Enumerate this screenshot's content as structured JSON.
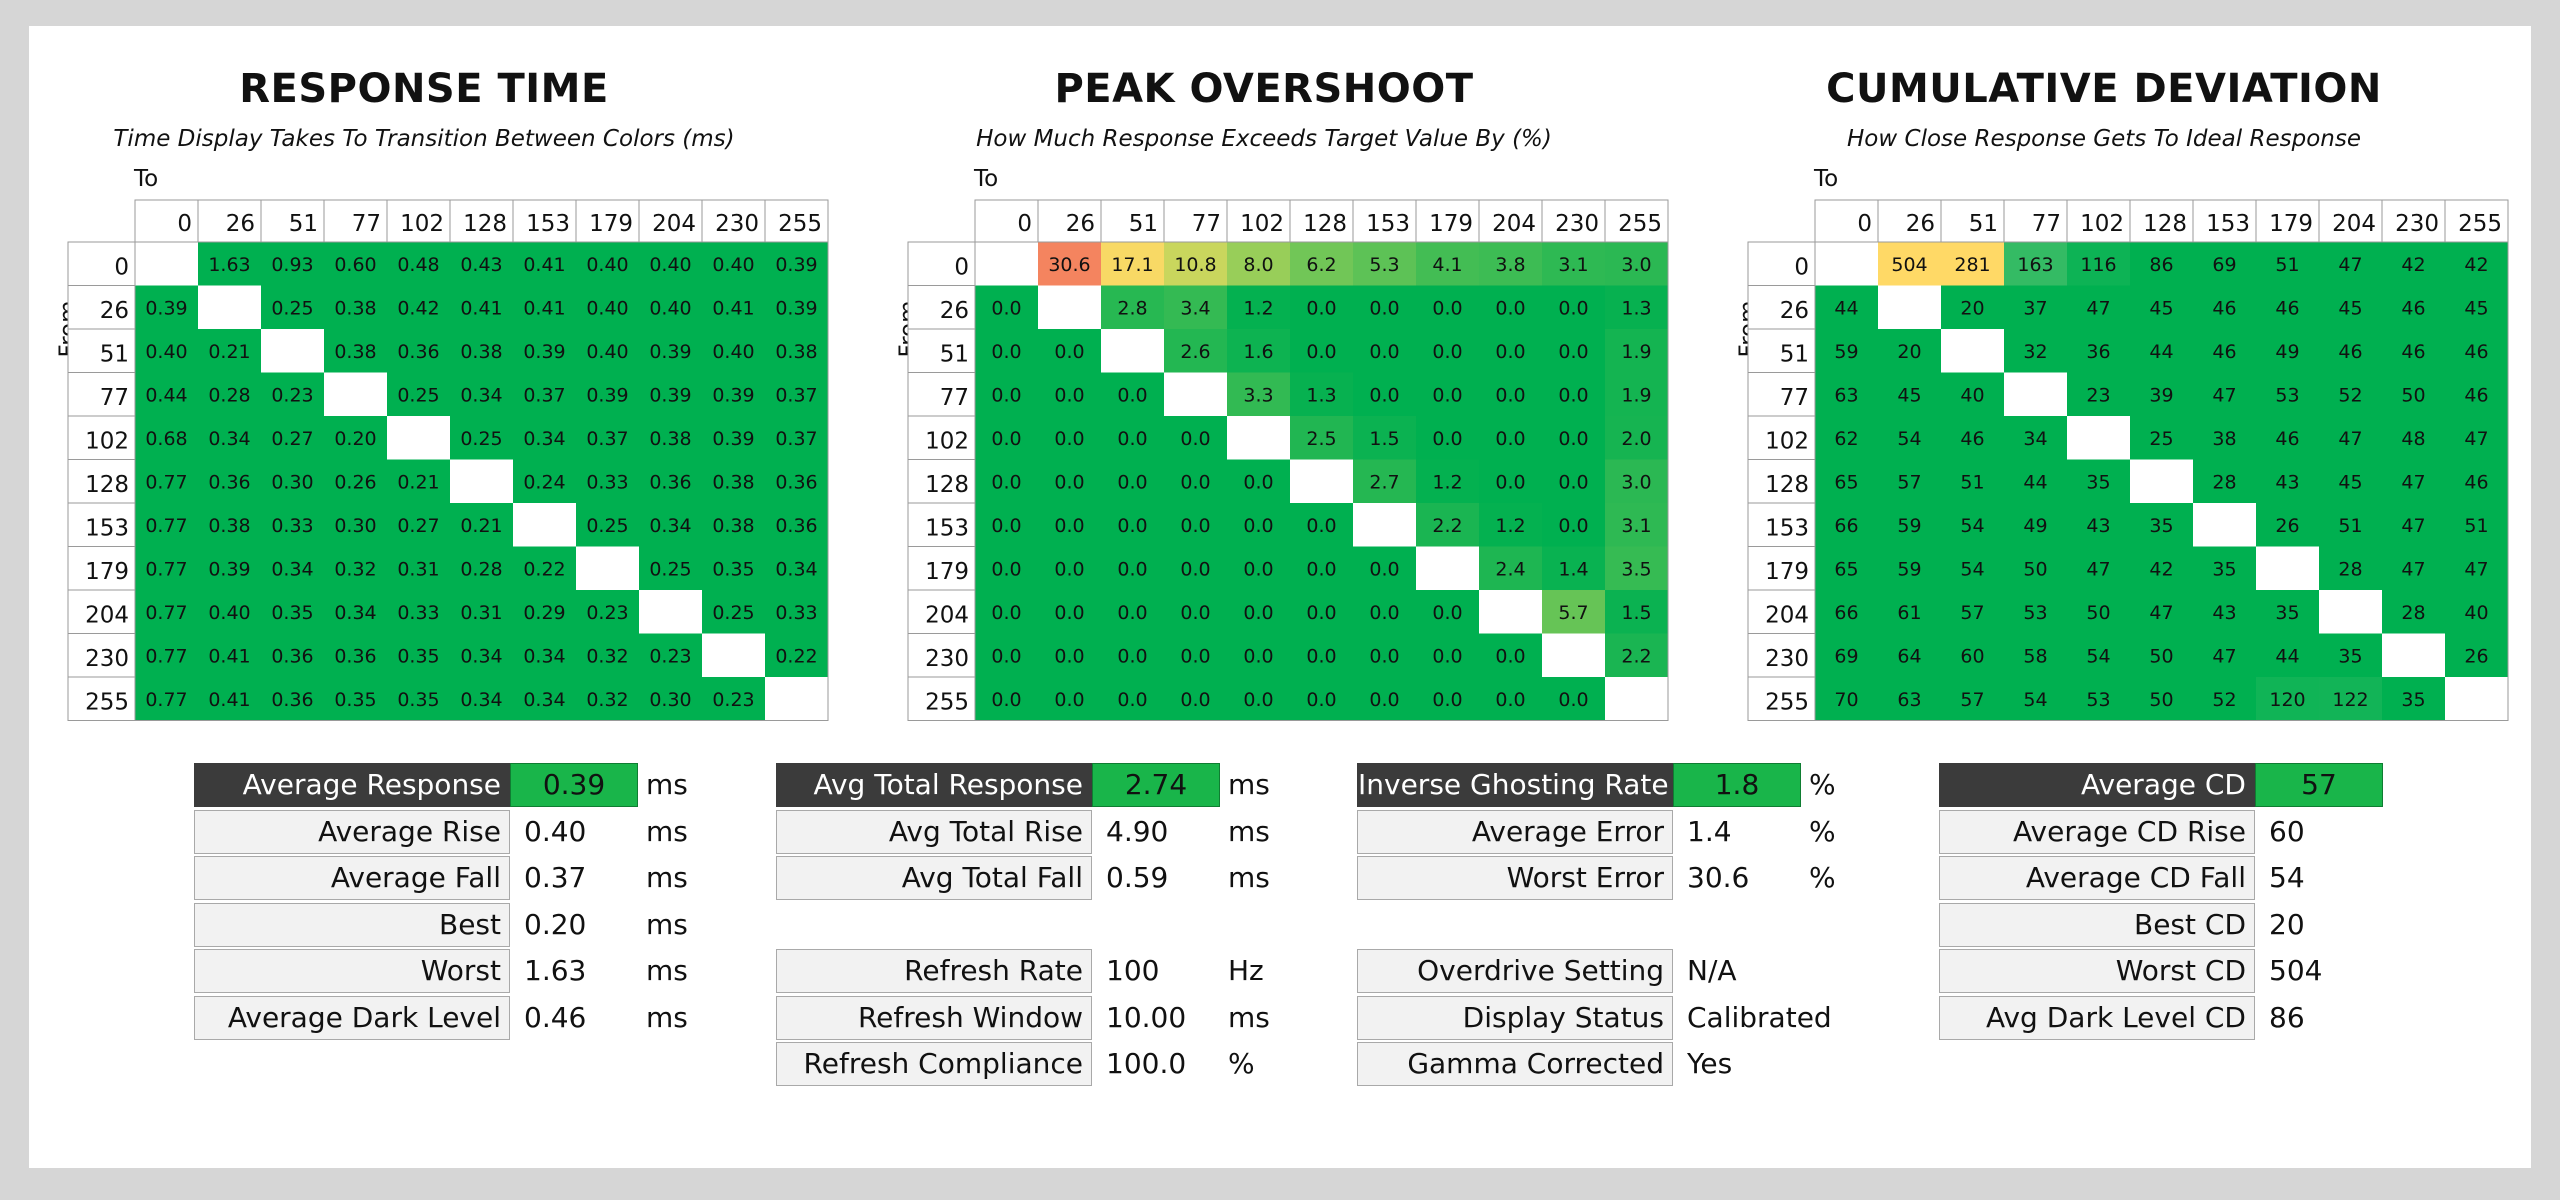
{
  "chart_data": [
    {
      "type": "heatmap",
      "title": "RESPONSE TIME",
      "subtitle": "Time Display Takes To Transition Between Colors (ms)",
      "x_axis_label": "To",
      "y_axis_label": "From",
      "levels": [
        "0",
        "26",
        "51",
        "77",
        "102",
        "128",
        "153",
        "179",
        "204",
        "230",
        "255"
      ],
      "decimals": 2,
      "values": [
        [
          null,
          1.63,
          0.93,
          0.6,
          0.48,
          0.43,
          0.41,
          0.4,
          0.4,
          0.4,
          0.39
        ],
        [
          0.39,
          null,
          0.25,
          0.38,
          0.42,
          0.41,
          0.41,
          0.4,
          0.4,
          0.41,
          0.39
        ],
        [
          0.4,
          0.21,
          null,
          0.38,
          0.36,
          0.38,
          0.39,
          0.4,
          0.39,
          0.4,
          0.38
        ],
        [
          0.44,
          0.28,
          0.23,
          null,
          0.25,
          0.34,
          0.37,
          0.39,
          0.39,
          0.39,
          0.37
        ],
        [
          0.68,
          0.34,
          0.27,
          0.2,
          null,
          0.25,
          0.34,
          0.37,
          0.38,
          0.39,
          0.37
        ],
        [
          0.77,
          0.36,
          0.3,
          0.26,
          0.21,
          null,
          0.24,
          0.33,
          0.36,
          0.38,
          0.36
        ],
        [
          0.77,
          0.38,
          0.33,
          0.3,
          0.27,
          0.21,
          null,
          0.25,
          0.34,
          0.38,
          0.36
        ],
        [
          0.77,
          0.39,
          0.34,
          0.32,
          0.31,
          0.28,
          0.22,
          null,
          0.25,
          0.35,
          0.34
        ],
        [
          0.77,
          0.4,
          0.35,
          0.34,
          0.33,
          0.31,
          0.29,
          0.23,
          null,
          0.25,
          0.33
        ],
        [
          0.77,
          0.41,
          0.36,
          0.36,
          0.35,
          0.34,
          0.34,
          0.32,
          0.23,
          null,
          0.22
        ],
        [
          0.77,
          0.41,
          0.36,
          0.35,
          0.35,
          0.34,
          0.34,
          0.32,
          0.3,
          0.23,
          null
        ]
      ]
    },
    {
      "type": "heatmap",
      "title": "PEAK OVERSHOOT",
      "subtitle": "How Much Response Exceeds Target Value By (%)",
      "x_axis_label": "To",
      "y_axis_label": "From",
      "levels": [
        "0",
        "26",
        "51",
        "77",
        "102",
        "128",
        "153",
        "179",
        "204",
        "230",
        "255"
      ],
      "decimals": 1,
      "values": [
        [
          null,
          30.6,
          17.1,
          10.8,
          8.0,
          6.2,
          5.3,
          4.1,
          3.8,
          3.1,
          3.0
        ],
        [
          0.0,
          null,
          2.8,
          3.4,
          1.2,
          0.0,
          0.0,
          0.0,
          0.0,
          0.0,
          1.3
        ],
        [
          0.0,
          0.0,
          null,
          2.6,
          1.6,
          0.0,
          0.0,
          0.0,
          0.0,
          0.0,
          1.9
        ],
        [
          0.0,
          0.0,
          0.0,
          null,
          3.3,
          1.3,
          0.0,
          0.0,
          0.0,
          0.0,
          1.9
        ],
        [
          0.0,
          0.0,
          0.0,
          0.0,
          null,
          2.5,
          1.5,
          0.0,
          0.0,
          0.0,
          2.0
        ],
        [
          0.0,
          0.0,
          0.0,
          0.0,
          0.0,
          null,
          2.7,
          1.2,
          0.0,
          0.0,
          3.0
        ],
        [
          0.0,
          0.0,
          0.0,
          0.0,
          0.0,
          0.0,
          null,
          2.2,
          1.2,
          0.0,
          3.1
        ],
        [
          0.0,
          0.0,
          0.0,
          0.0,
          0.0,
          0.0,
          0.0,
          null,
          2.4,
          1.4,
          3.5
        ],
        [
          0.0,
          0.0,
          0.0,
          0.0,
          0.0,
          0.0,
          0.0,
          0.0,
          null,
          5.7,
          1.5
        ],
        [
          0.0,
          0.0,
          0.0,
          0.0,
          0.0,
          0.0,
          0.0,
          0.0,
          0.0,
          null,
          2.2
        ],
        [
          0.0,
          0.0,
          0.0,
          0.0,
          0.0,
          0.0,
          0.0,
          0.0,
          0.0,
          0.0,
          null
        ]
      ]
    },
    {
      "type": "heatmap",
      "title": "CUMULATIVE DEVIATION",
      "subtitle": "How Close Response Gets To Ideal Response",
      "x_axis_label": "To",
      "y_axis_label": "From",
      "levels": [
        "0",
        "26",
        "51",
        "77",
        "102",
        "128",
        "153",
        "179",
        "204",
        "230",
        "255"
      ],
      "decimals": 0,
      "values": [
        [
          null,
          504,
          281,
          163,
          116,
          86,
          69,
          51,
          47,
          42,
          42
        ],
        [
          44,
          null,
          20,
          37,
          47,
          45,
          46,
          46,
          45,
          46,
          45
        ],
        [
          59,
          20,
          null,
          32,
          36,
          44,
          46,
          49,
          46,
          46,
          46
        ],
        [
          63,
          45,
          40,
          null,
          23,
          39,
          47,
          53,
          52,
          50,
          46
        ],
        [
          62,
          54,
          46,
          34,
          null,
          25,
          38,
          46,
          47,
          48,
          47
        ],
        [
          65,
          57,
          51,
          44,
          35,
          null,
          28,
          43,
          45,
          47,
          46
        ],
        [
          66,
          59,
          54,
          49,
          43,
          35,
          null,
          26,
          51,
          47,
          51
        ],
        [
          65,
          59,
          54,
          50,
          47,
          42,
          35,
          null,
          28,
          47,
          47
        ],
        [
          66,
          61,
          57,
          53,
          50,
          47,
          43,
          35,
          null,
          28,
          40
        ],
        [
          69,
          64,
          60,
          58,
          54,
          50,
          47,
          44,
          35,
          null,
          26
        ],
        [
          70,
          63,
          57,
          54,
          53,
          50,
          52,
          120,
          122,
          35,
          null
        ]
      ]
    }
  ],
  "stats": [
    {
      "id": "response",
      "rows": [
        {
          "label": "Average Response",
          "value": "0.39",
          "unit": "ms",
          "header": true
        },
        {
          "label": "Average Rise",
          "value": "0.40",
          "unit": "ms"
        },
        {
          "label": "Average Fall",
          "value": "0.37",
          "unit": "ms"
        },
        {
          "label": "Best",
          "value": "0.20",
          "unit": "ms"
        },
        {
          "label": "Worst",
          "value": "1.63",
          "unit": "ms"
        },
        {
          "label": "Average Dark Level",
          "value": "0.46",
          "unit": "ms"
        }
      ]
    },
    {
      "id": "total",
      "rows": [
        {
          "label": "Avg Total Response",
          "value": "2.74",
          "unit": "ms",
          "header": true
        },
        {
          "label": "Avg Total Rise",
          "value": "4.90",
          "unit": "ms"
        },
        {
          "label": "Avg Total Fall",
          "value": "0.59",
          "unit": "ms"
        },
        null,
        {
          "label": "Refresh Rate",
          "value": "100",
          "unit": "Hz"
        },
        {
          "label": "Refresh Window",
          "value": "10.00",
          "unit": "ms"
        },
        {
          "label": "Refresh Compliance",
          "value": "100.0",
          "unit": "%"
        }
      ]
    },
    {
      "id": "ghosting",
      "rows": [
        {
          "label": "Inverse Ghosting Rate",
          "value": "1.8",
          "unit": "%",
          "header": true
        },
        {
          "label": "Average Error",
          "value": "1.4",
          "unit": "%"
        },
        {
          "label": "Worst Error",
          "value": "30.6",
          "unit": "%"
        },
        null,
        {
          "label": "Overdrive Setting",
          "value": "N/A",
          "unit": ""
        },
        {
          "label": "Display Status",
          "value": "Calibrated",
          "unit": ""
        },
        {
          "label": "Gamma Corrected",
          "value": "Yes",
          "unit": ""
        }
      ]
    },
    {
      "id": "cd",
      "rows": [
        {
          "label": "Average CD",
          "value": "57",
          "unit": "",
          "header": true
        },
        {
          "label": "Average CD Rise",
          "value": "60",
          "unit": ""
        },
        {
          "label": "Average CD Fall",
          "value": "54",
          "unit": ""
        },
        {
          "label": "Best CD",
          "value": "20",
          "unit": ""
        },
        {
          "label": "Worst CD",
          "value": "504",
          "unit": ""
        },
        {
          "label": "Avg Dark Level CD",
          "value": "86",
          "unit": ""
        }
      ]
    }
  ],
  "colors": {
    "good_green": "#00b050",
    "header_dark": "#3b3b3b",
    "warn_orange": "#f4845f",
    "warn_yellow": "#ffd966"
  }
}
